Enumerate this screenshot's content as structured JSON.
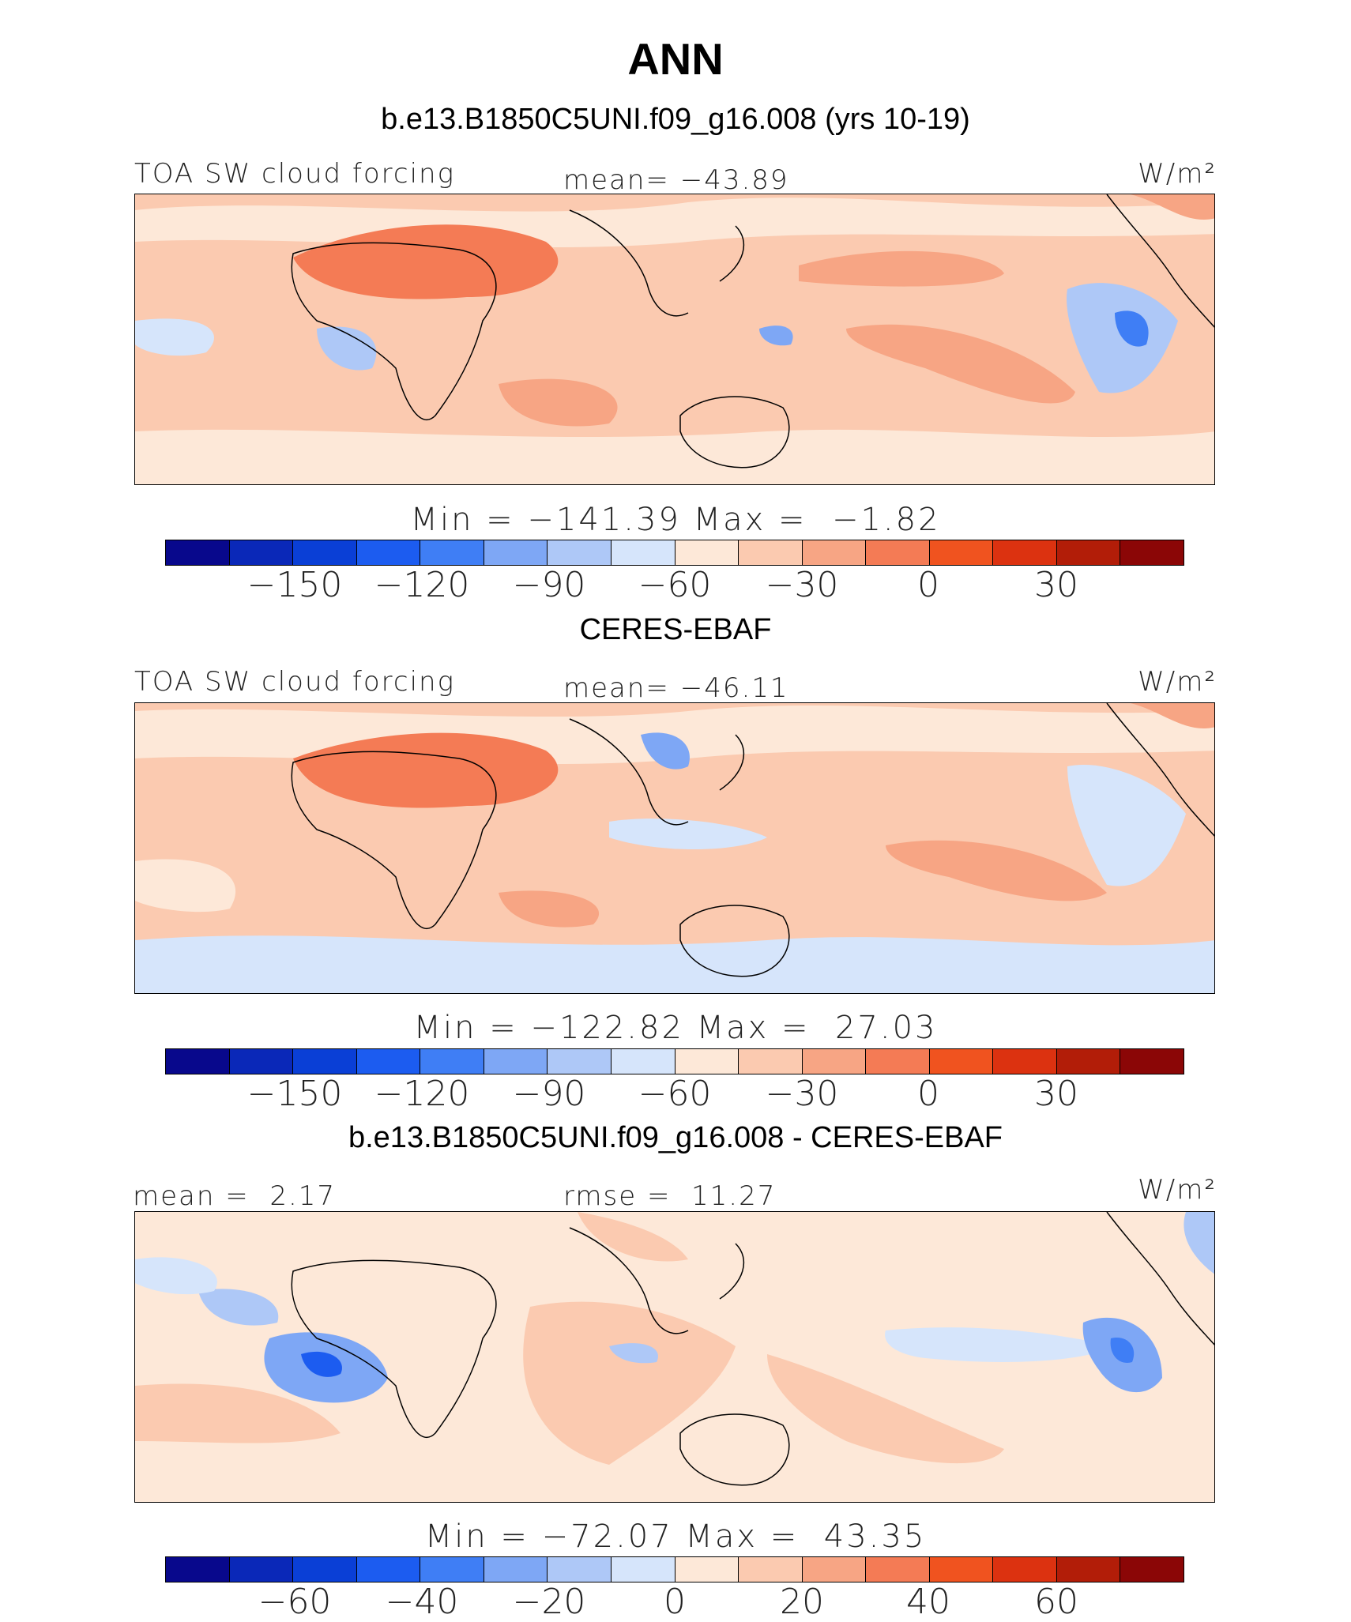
{
  "title": "ANN",
  "panels": [
    {
      "title": "b.e13.B1850C5UNI.f09_g16.008 (yrs 10-19)",
      "left_label": "TOA SW cloud forcing",
      "center_label": "mean= −43.89",
      "units": "W/m²",
      "minmax": "Min = −141.39 Max =  −1.82",
      "tick_labels": [
        "−150",
        "−120",
        "−90",
        "−60",
        "−30",
        "0",
        "30"
      ]
    },
    {
      "title": "CERES-EBAF",
      "left_label": "TOA SW cloud forcing",
      "center_label": "mean= −46.11",
      "units": "W/m²",
      "minmax": "Min = −122.82 Max =  27.03",
      "tick_labels": [
        "−150",
        "−120",
        "−90",
        "−60",
        "−30",
        "0",
        "30"
      ]
    },
    {
      "title": "b.e13.B1850C5UNI.f09_g16.008 - CERES-EBAF",
      "left_label": "mean =  2.17",
      "center_label": "rmse =  11.27",
      "units": "W/m²",
      "minmax": "Min = −72.07 Max =  43.35",
      "tick_labels": [
        "−60",
        "−40",
        "−20",
        "0",
        "20",
        "40",
        "60"
      ]
    }
  ],
  "colorbar_colors": [
    "#08088c",
    "#0a28b8",
    "#0a3fd6",
    "#1c5cf0",
    "#3f7ef5",
    "#7ea7f5",
    "#aec8f7",
    "#d6e5fb",
    "#fde8d8",
    "#fbcab0",
    "#f7a584",
    "#f47b55",
    "#f0531f",
    "#dc3210",
    "#b21d08",
    "#8b0606"
  ],
  "chart_data": [
    {
      "type": "heatmap",
      "title": "b.e13.B1850C5UNI.f09_g16.008 (yrs 10-19)",
      "variable": "TOA SW cloud forcing",
      "units": "W/m²",
      "mean": -43.89,
      "min": -141.39,
      "max": -1.82,
      "colorbar_ticks": [
        -150,
        -120,
        -90,
        -60,
        -30,
        0,
        30
      ]
    },
    {
      "type": "heatmap",
      "title": "CERES-EBAF",
      "variable": "TOA SW cloud forcing",
      "units": "W/m²",
      "mean": -46.11,
      "min": -122.82,
      "max": 27.03,
      "colorbar_ticks": [
        -150,
        -120,
        -90,
        -60,
        -30,
        0,
        30
      ]
    },
    {
      "type": "heatmap",
      "title": "b.e13.B1850C5UNI.f09_g16.008 - CERES-EBAF",
      "units": "W/m²",
      "mean": 2.17,
      "rmse": 11.27,
      "min": -72.07,
      "max": 43.35,
      "colorbar_ticks": [
        -60,
        -40,
        -20,
        0,
        20,
        40,
        60
      ]
    }
  ]
}
